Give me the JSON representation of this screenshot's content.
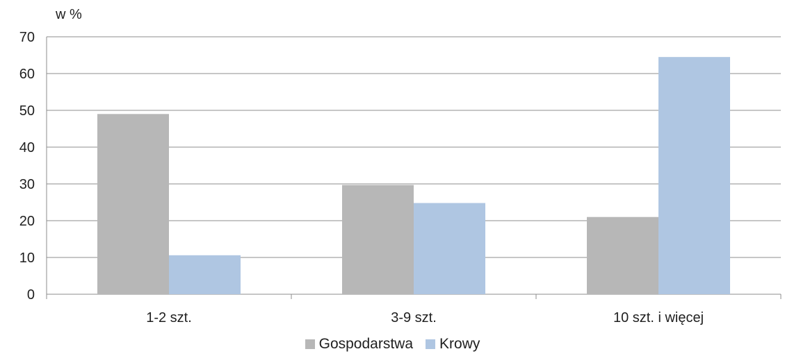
{
  "chart_data": {
    "type": "bar",
    "unit_label": "w %",
    "categories": [
      "1-2 szt.",
      "3-9 szt.",
      "10 szt. i więcej"
    ],
    "series": [
      {
        "name": "Gospodarstwa",
        "values": [
          49,
          29.7,
          21
        ],
        "color": "#b7b7b7"
      },
      {
        "name": "Krowy",
        "values": [
          10.6,
          24.8,
          64.5
        ],
        "color": "#afc6e2"
      }
    ],
    "ylim": [
      0,
      70
    ],
    "yticks": [
      0,
      10,
      20,
      30,
      40,
      50,
      60,
      70
    ],
    "grid": true,
    "legend_position": "bottom"
  },
  "colors": {
    "grid": "#8c8c8c",
    "axis": "#8c8c8c",
    "text": "#1f1f1f"
  }
}
